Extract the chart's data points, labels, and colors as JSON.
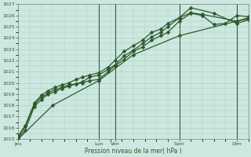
{
  "title": "",
  "xlabel": "Pression niveau de la mer( hPa )",
  "ylabel": "",
  "bg_color": "#cce8e0",
  "grid_color": "#aaccbb",
  "line_color": "#2d5a2d",
  "vline_color": "#445544",
  "ylim": [
    1015,
    1027
  ],
  "yticks": [
    1015,
    1016,
    1017,
    1018,
    1019,
    1020,
    1021,
    1022,
    1023,
    1024,
    1025,
    1026,
    1027
  ],
  "x_tick_labels": [
    "Jeu",
    "Lun",
    "Ven",
    "Sam",
    "Dim"
  ],
  "x_tick_positions": [
    0.0,
    3.5,
    4.2,
    7.0,
    9.5
  ],
  "xlim": [
    0.0,
    10.0
  ],
  "vlines": [
    3.5,
    4.2,
    7.0,
    9.5
  ],
  "series": [
    {
      "x": [
        0.0,
        0.3,
        0.7,
        1.0,
        1.3,
        1.6,
        1.9,
        2.2,
        2.5,
        2.8,
        3.1,
        3.5,
        3.9,
        4.2,
        4.6,
        5.0,
        5.4,
        5.8,
        6.2,
        6.5,
        7.0,
        7.5,
        8.0,
        8.5,
        9.0,
        9.5,
        10.0
      ],
      "y": [
        1015.2,
        1016.1,
        1018.1,
        1018.7,
        1019.1,
        1019.4,
        1019.6,
        1019.8,
        1019.9,
        1020.0,
        1020.2,
        1020.3,
        1021.0,
        1021.5,
        1022.1,
        1022.8,
        1023.2,
        1023.8,
        1024.2,
        1024.5,
        1025.5,
        1026.2,
        1026.0,
        1025.2,
        1025.3,
        1026.0,
        1025.9
      ]
    },
    {
      "x": [
        0.0,
        0.3,
        0.7,
        1.0,
        1.3,
        1.6,
        1.9,
        2.2,
        2.5,
        2.8,
        3.1,
        3.5,
        3.9,
        4.2,
        4.6,
        5.0,
        5.4,
        5.8,
        6.2,
        6.5,
        7.0,
        7.5,
        8.0,
        9.5,
        10.0
      ],
      "y": [
        1015.3,
        1016.2,
        1018.2,
        1018.9,
        1019.3,
        1019.6,
        1019.8,
        1020.0,
        1020.3,
        1020.5,
        1020.7,
        1020.9,
        1021.4,
        1022.0,
        1022.8,
        1023.3,
        1023.8,
        1024.5,
        1024.8,
        1025.3,
        1025.8,
        1026.25,
        1026.1,
        1025.5,
        1025.8
      ]
    },
    {
      "x": [
        0.0,
        0.3,
        0.7,
        1.0,
        1.3,
        1.6,
        1.9,
        2.2,
        2.5,
        2.8,
        3.1,
        3.5,
        3.9,
        4.2,
        4.6,
        5.0,
        5.4,
        5.8,
        6.2,
        6.5,
        7.0,
        7.5,
        8.5,
        9.5,
        10.0
      ],
      "y": [
        1015.1,
        1015.8,
        1017.9,
        1018.5,
        1019.0,
        1019.2,
        1019.5,
        1019.7,
        1019.9,
        1020.1,
        1020.5,
        1020.7,
        1021.2,
        1021.6,
        1022.4,
        1022.9,
        1023.5,
        1024.1,
        1024.5,
        1025.0,
        1025.8,
        1026.7,
        1026.2,
        1025.3,
        1025.6
      ]
    },
    {
      "x": [
        0.0,
        1.5,
        3.5,
        5.0,
        7.0,
        9.5,
        10.0
      ],
      "y": [
        1015.0,
        1018.0,
        1020.2,
        1022.5,
        1024.2,
        1025.5,
        1025.7
      ]
    }
  ],
  "marker": "D",
  "markersize": 2.5,
  "linewidth": 0.9,
  "figsize": [
    3.2,
    2.0
  ],
  "dpi": 100
}
